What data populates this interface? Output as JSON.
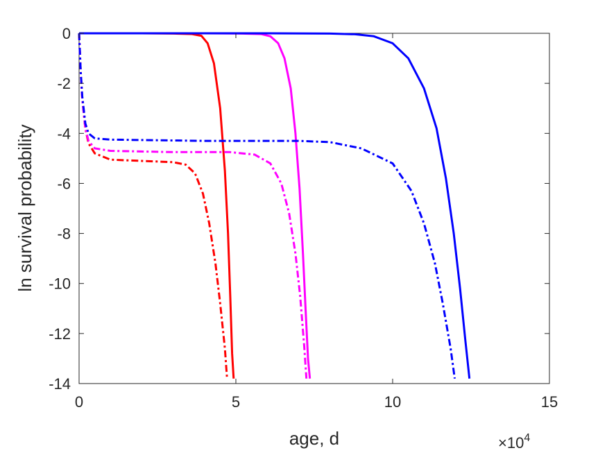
{
  "chart_data": {
    "type": "line",
    "title": "",
    "xlabel": "age, d",
    "ylabel": "ln survival probability",
    "x_exponent_base": "×10",
    "x_exponent_power": "4",
    "xlim": [
      0,
      150000
    ],
    "ylim": [
      -14,
      0
    ],
    "xticks": [
      0,
      50000,
      100000,
      150000
    ],
    "xtick_labels": [
      "0",
      "5",
      "10",
      "15"
    ],
    "yticks": [
      0,
      -2,
      -4,
      -6,
      -8,
      -10,
      -12,
      -14
    ],
    "ytick_labels": [
      "0",
      "-2",
      "-4",
      "-6",
      "-8",
      "-10",
      "-12",
      "-14"
    ],
    "grid": false,
    "series": [
      {
        "color": "#ff0000",
        "style": "solid",
        "points": [
          [
            0,
            0
          ],
          [
            20000,
            0
          ],
          [
            30000,
            -0.01
          ],
          [
            36000,
            -0.03
          ],
          [
            39000,
            -0.1
          ],
          [
            41000,
            -0.4
          ],
          [
            43000,
            -1.2
          ],
          [
            45000,
            -3.0
          ],
          [
            46500,
            -5.5
          ],
          [
            47500,
            -8.0
          ],
          [
            48200,
            -10.5
          ],
          [
            48800,
            -12.8
          ],
          [
            49300,
            -13.8
          ]
        ]
      },
      {
        "color": "#ff00ff",
        "style": "solid",
        "points": [
          [
            0,
            0
          ],
          [
            40000,
            0
          ],
          [
            52000,
            -0.01
          ],
          [
            58000,
            -0.03
          ],
          [
            61000,
            -0.12
          ],
          [
            63500,
            -0.4
          ],
          [
            65500,
            -1.0
          ],
          [
            67500,
            -2.2
          ],
          [
            69000,
            -4.0
          ],
          [
            70300,
            -6.2
          ],
          [
            71400,
            -8.8
          ],
          [
            72300,
            -11.2
          ],
          [
            73000,
            -13.0
          ],
          [
            73600,
            -13.8
          ]
        ]
      },
      {
        "color": "#0000ff",
        "style": "solid",
        "points": [
          [
            0,
            0
          ],
          [
            60000,
            0
          ],
          [
            80000,
            -0.01
          ],
          [
            88000,
            -0.04
          ],
          [
            94000,
            -0.12
          ],
          [
            100000,
            -0.4
          ],
          [
            105000,
            -1.0
          ],
          [
            110000,
            -2.2
          ],
          [
            114000,
            -3.8
          ],
          [
            117000,
            -5.8
          ],
          [
            119500,
            -8.0
          ],
          [
            121500,
            -10.2
          ],
          [
            123200,
            -12.3
          ],
          [
            124500,
            -13.8
          ]
        ]
      },
      {
        "color": "#ff0000",
        "style": "dashdot",
        "points": [
          [
            0,
            0
          ],
          [
            500,
            -1.5
          ],
          [
            1000,
            -2.6
          ],
          [
            2000,
            -3.8
          ],
          [
            3000,
            -4.4
          ],
          [
            5000,
            -4.8
          ],
          [
            10000,
            -5.05
          ],
          [
            20000,
            -5.1
          ],
          [
            30000,
            -5.15
          ],
          [
            34000,
            -5.25
          ],
          [
            37000,
            -5.6
          ],
          [
            39500,
            -6.4
          ],
          [
            41500,
            -7.6
          ],
          [
            43500,
            -9.2
          ],
          [
            45000,
            -10.8
          ],
          [
            46500,
            -12.6
          ],
          [
            47200,
            -13.8
          ]
        ]
      },
      {
        "color": "#ff00ff",
        "style": "dashdot",
        "points": [
          [
            0,
            0
          ],
          [
            500,
            -1.5
          ],
          [
            1000,
            -2.6
          ],
          [
            2000,
            -3.8
          ],
          [
            3000,
            -4.3
          ],
          [
            5000,
            -4.6
          ],
          [
            10000,
            -4.7
          ],
          [
            30000,
            -4.75
          ],
          [
            48000,
            -4.75
          ],
          [
            56000,
            -4.85
          ],
          [
            61000,
            -5.2
          ],
          [
            64500,
            -6.0
          ],
          [
            67000,
            -7.2
          ],
          [
            69000,
            -8.8
          ],
          [
            70500,
            -10.5
          ],
          [
            71800,
            -12.5
          ],
          [
            72500,
            -13.8
          ]
        ]
      },
      {
        "color": "#0000ff",
        "style": "dashdot",
        "points": [
          [
            0,
            0
          ],
          [
            500,
            -1.5
          ],
          [
            1000,
            -2.5
          ],
          [
            2000,
            -3.6
          ],
          [
            3000,
            -4.0
          ],
          [
            5000,
            -4.2
          ],
          [
            10000,
            -4.25
          ],
          [
            40000,
            -4.3
          ],
          [
            70000,
            -4.3
          ],
          [
            80000,
            -4.35
          ],
          [
            90000,
            -4.6
          ],
          [
            100000,
            -5.2
          ],
          [
            106000,
            -6.3
          ],
          [
            110000,
            -7.6
          ],
          [
            113500,
            -9.2
          ],
          [
            116000,
            -10.8
          ],
          [
            118500,
            -12.6
          ],
          [
            119800,
            -13.8
          ]
        ]
      }
    ]
  }
}
